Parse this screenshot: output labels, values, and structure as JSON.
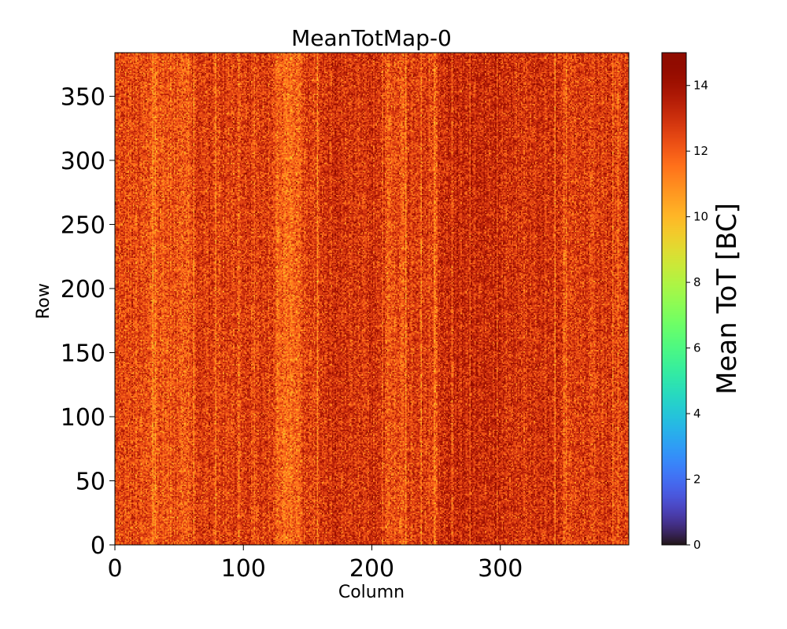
{
  "chart_data": {
    "type": "heatmap",
    "title": "MeanTotMap-0",
    "xlabel": "Column",
    "ylabel": "Row",
    "colorbar_label": "Mean ToT [BC]",
    "xlim": [
      0,
      400
    ],
    "ylim": [
      0,
      384
    ],
    "clim": [
      0,
      15
    ],
    "colormap": "turbo",
    "x_ticks": [
      0,
      100,
      200,
      300
    ],
    "y_ticks": [
      0,
      50,
      100,
      150,
      200,
      250,
      300,
      350
    ],
    "colorbar_ticks": [
      0,
      2,
      4,
      6,
      8,
      10,
      12,
      14
    ],
    "grid": false,
    "value_summary": {
      "typical_range": [
        10,
        15
      ],
      "column_bands": [
        {
          "columns": [
            0,
            20
          ],
          "mean": 12.4
        },
        {
          "columns": [
            20,
            60
          ],
          "mean": 12.2
        },
        {
          "columns": [
            60,
            125
          ],
          "mean": 12.7
        },
        {
          "columns": [
            125,
            145
          ],
          "mean": 11.8
        },
        {
          "columns": [
            145,
            165
          ],
          "mean": 12.6
        },
        {
          "columns": [
            165,
            210
          ],
          "mean": 13.0
        },
        {
          "columns": [
            210,
            225
          ],
          "mean": 12.2
        },
        {
          "columns": [
            225,
            250
          ],
          "mean": 12.6
        },
        {
          "columns": [
            250,
            300
          ],
          "mean": 13.2
        },
        {
          "columns": [
            300,
            340
          ],
          "mean": 12.9
        },
        {
          "columns": [
            340,
            400
          ],
          "mean": 12.8
        }
      ]
    }
  }
}
